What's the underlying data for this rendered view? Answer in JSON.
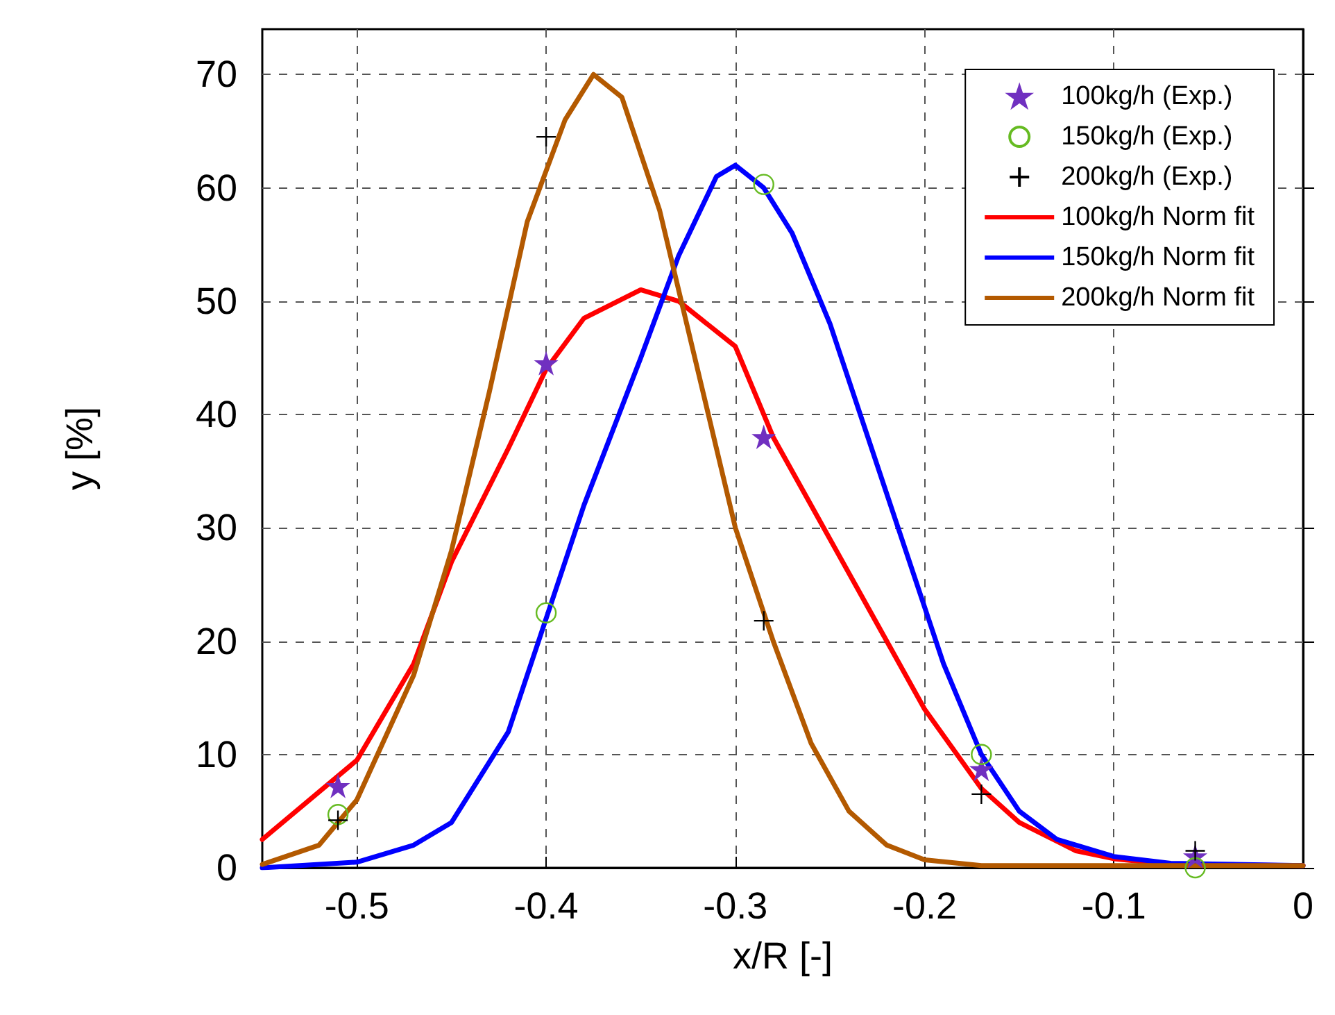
{
  "chart_data": {
    "type": "line",
    "xlabel": "x/R [-]",
    "ylabel": "y [%]",
    "xlim": [
      -0.55,
      0
    ],
    "xticks": [
      -0.5,
      -0.4,
      -0.3,
      -0.2,
      -0.1,
      0
    ],
    "ylim": [
      0,
      74
    ],
    "yticks": [
      0,
      10,
      20,
      30,
      40,
      50,
      60,
      70
    ],
    "grid": true,
    "legend": "top right",
    "series": [
      {
        "name": "100kg/h (Exp.)",
        "type": "scatter",
        "marker": "star",
        "color": "#7030c0",
        "x": [
          -0.51,
          -0.4,
          -0.285,
          -0.17,
          -0.057
        ],
        "values": [
          7.2,
          44.5,
          38,
          8.7,
          1.0
        ]
      },
      {
        "name": "150kg/h (Exp.)",
        "type": "scatter",
        "marker": "circle",
        "color": "#66bb22",
        "x": [
          -0.51,
          -0.4,
          -0.285,
          -0.17,
          -0.057
        ],
        "values": [
          4.7,
          22.5,
          60.3,
          10,
          0
        ]
      },
      {
        "name": "200kg/h (Exp.)",
        "type": "scatter",
        "marker": "cross",
        "color": "#000000",
        "x": [
          -0.51,
          -0.4,
          -0.285,
          -0.17,
          -0.057
        ],
        "values": [
          4.2,
          64.5,
          21.8,
          6.5,
          1.5
        ]
      },
      {
        "name": "100kg/h Norm fit",
        "marker": "none",
        "color": "#ff0000",
        "x": [
          -0.55,
          -0.5,
          -0.47,
          -0.45,
          -0.42,
          -0.4,
          -0.38,
          -0.35,
          -0.33,
          -0.3,
          -0.28,
          -0.25,
          -0.22,
          -0.2,
          -0.17,
          -0.15,
          -0.12,
          -0.1,
          -0.07,
          0
        ],
        "values": [
          2.5,
          9.5,
          18,
          27,
          37,
          44,
          48.5,
          51,
          50,
          46,
          38,
          29,
          20,
          14,
          7,
          4,
          1.5,
          0.8,
          0.3,
          0.2
        ]
      },
      {
        "name": "150kg/h Norm fit",
        "marker": "none",
        "color": "#0000ff",
        "x": [
          -0.55,
          -0.5,
          -0.47,
          -0.45,
          -0.42,
          -0.4,
          -0.38,
          -0.35,
          -0.33,
          -0.31,
          -0.3,
          -0.285,
          -0.27,
          -0.25,
          -0.23,
          -0.21,
          -0.19,
          -0.17,
          -0.15,
          -0.13,
          -0.1,
          -0.07,
          0
        ],
        "values": [
          0,
          0.5,
          2,
          4,
          12,
          22,
          32,
          45,
          54,
          61,
          62,
          60,
          56,
          48,
          38,
          28,
          18,
          10,
          5,
          2.5,
          1,
          0.4,
          0.2
        ]
      },
      {
        "name": "200kg/h Norm fit",
        "marker": "none",
        "color": "#b35900",
        "x": [
          -0.55,
          -0.52,
          -0.5,
          -0.47,
          -0.45,
          -0.43,
          -0.41,
          -0.39,
          -0.375,
          -0.36,
          -0.34,
          -0.32,
          -0.3,
          -0.28,
          -0.26,
          -0.24,
          -0.22,
          -0.2,
          -0.17,
          0
        ],
        "values": [
          0.3,
          2,
          6,
          17,
          28,
          42,
          57,
          66,
          70,
          68,
          58,
          44,
          30,
          20,
          11,
          5,
          2,
          0.7,
          0.2,
          0.2
        ]
      }
    ]
  }
}
